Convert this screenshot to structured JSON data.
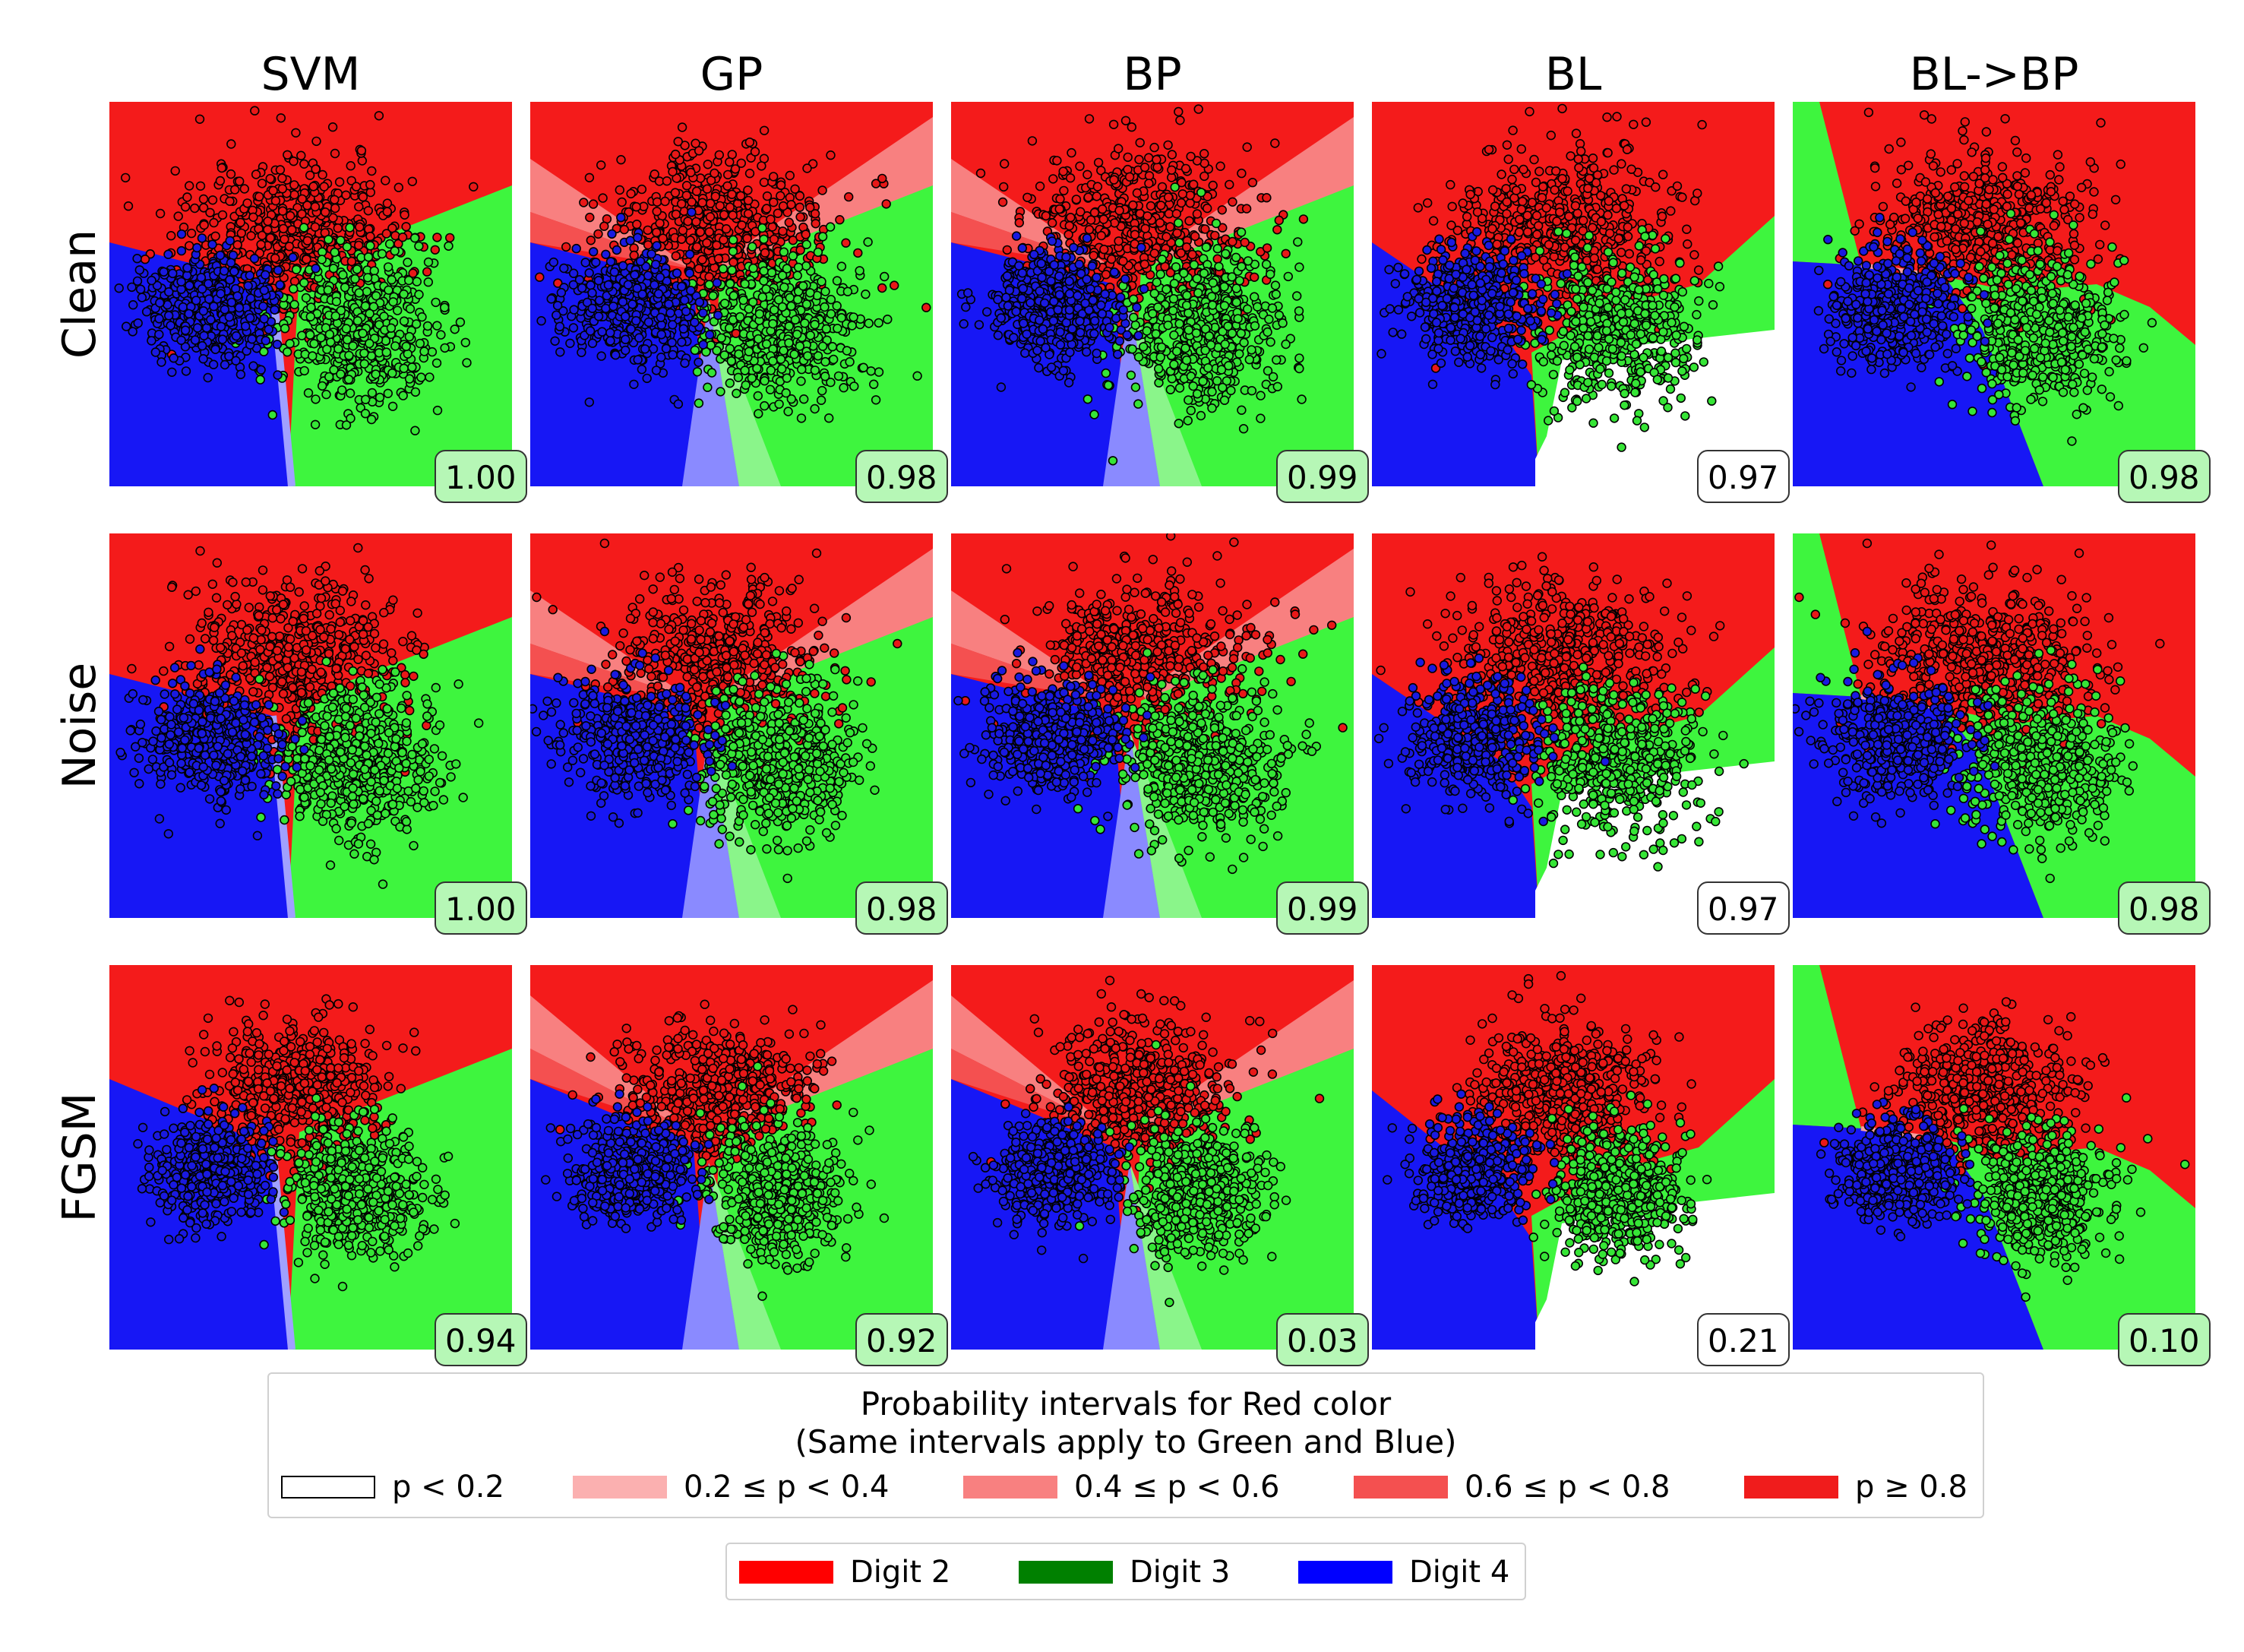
{
  "chart_data": {
    "type": "scatter",
    "columns": [
      "SVM",
      "GP",
      "BP",
      "BL",
      "BL->BP"
    ],
    "rows": [
      "Clean",
      "Noise",
      "FGSM"
    ],
    "accuracy": [
      [
        "1.00",
        "0.98",
        "0.99",
        "0.97",
        "0.98"
      ],
      [
        "1.00",
        "0.98",
        "0.99",
        "0.97",
        "0.98"
      ],
      [
        "0.94",
        "0.92",
        "0.03",
        "0.21",
        "0.10"
      ]
    ],
    "probability_legend": {
      "title_line1": "Probability intervals for Red color",
      "title_line2": "(Same intervals apply to Green and Blue)",
      "items": [
        {
          "label": "p < 0.2",
          "color": "#ffffff"
        },
        {
          "label": "0.2 ≤ p < 0.4",
          "color": "#fbb0b0"
        },
        {
          "label": "0.4 ≤ p < 0.6",
          "color": "#f88080"
        },
        {
          "label": "0.6 ≤ p < 0.8",
          "color": "#f45050"
        },
        {
          "label": "p ≥ 0.8",
          "color": "#f01c1c"
        }
      ]
    },
    "class_legend": {
      "items": [
        {
          "label": "Digit 2",
          "color": "#ff0000"
        },
        {
          "label": "Digit 3",
          "color": "#008000"
        },
        {
          "label": "Digit 4",
          "color": "#0000ff"
        }
      ]
    },
    "colors": {
      "red_region": "#f41b1b",
      "green_region": "#3ef53e",
      "blue_region": "#1717f5",
      "red_point": "#e81818",
      "green_point": "#36e536",
      "blue_point": "#1a1ae0"
    },
    "grid": false,
    "legend_placement": "bottom"
  }
}
